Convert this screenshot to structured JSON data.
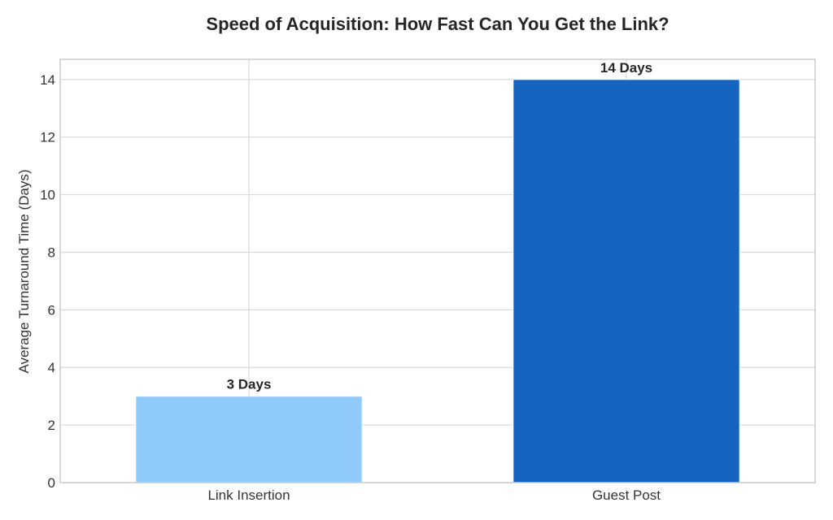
{
  "chart_data": {
    "type": "bar",
    "title": "Speed of Acquisition: How Fast Can You Get the Link?",
    "xlabel": "",
    "ylabel": "Average Turnaround Time (Days)",
    "categories": [
      "Link Insertion",
      "Guest Post"
    ],
    "values": [
      3,
      14
    ],
    "data_labels": [
      "3 Days",
      "14 Days"
    ],
    "colors": [
      "#90CAF9",
      "#1565C0"
    ],
    "ylim": [
      0,
      14.7
    ],
    "yticks": [
      "0",
      "2",
      "4",
      "6",
      "8",
      "10",
      "12",
      "14"
    ],
    "grid": true,
    "legend": "none"
  }
}
